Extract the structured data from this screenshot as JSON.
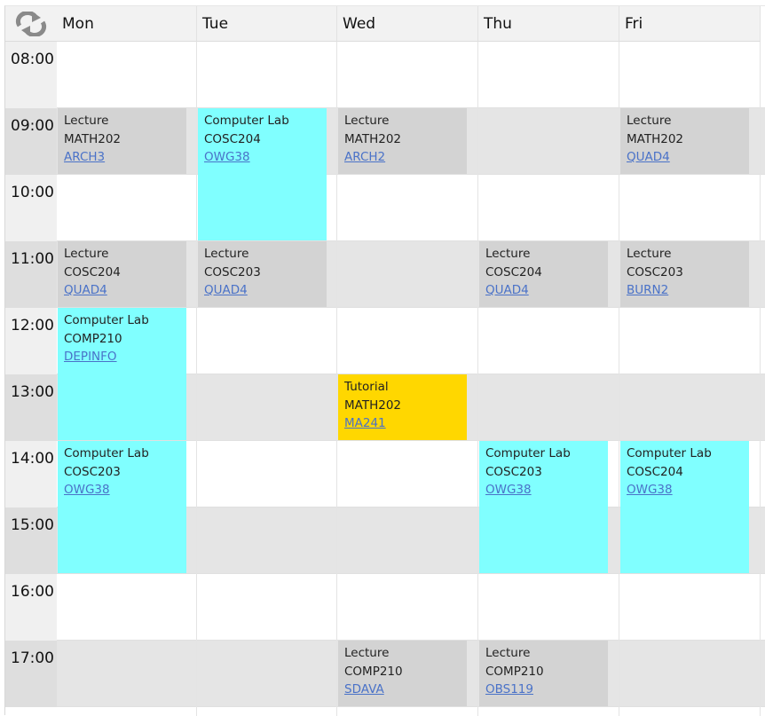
{
  "days": [
    "Mon",
    "Tue",
    "Wed",
    "Thu",
    "Fri"
  ],
  "times": [
    "08:00",
    "09:00",
    "10:00",
    "11:00",
    "12:00",
    "13:00",
    "14:00",
    "15:00",
    "16:00",
    "17:00"
  ],
  "colors": {
    "lecture": "#d3d3d3",
    "lab": "#80ffff",
    "tutorial": "#ffd700",
    "link": "#4a72c8"
  },
  "events": [
    {
      "day": 0,
      "start": 9,
      "hours": 1,
      "kind": "lecture",
      "type": "Lecture",
      "course": "MATH202",
      "room": "ARCH3"
    },
    {
      "day": 0,
      "start": 11,
      "hours": 1,
      "kind": "lecture",
      "type": "Lecture",
      "course": "COSC204",
      "room": "QUAD4"
    },
    {
      "day": 0,
      "start": 12,
      "hours": 2,
      "kind": "lab",
      "type": "Computer Lab",
      "course": "COMP210",
      "room": "DEPINFO"
    },
    {
      "day": 0,
      "start": 14,
      "hours": 2,
      "kind": "lab",
      "type": "Computer Lab",
      "course": "COSC203",
      "room": "OWG38"
    },
    {
      "day": 1,
      "start": 9,
      "hours": 2,
      "kind": "lab",
      "type": "Computer Lab",
      "course": "COSC204",
      "room": "OWG38"
    },
    {
      "day": 1,
      "start": 11,
      "hours": 1,
      "kind": "lecture",
      "type": "Lecture",
      "course": "COSC203",
      "room": "QUAD4"
    },
    {
      "day": 2,
      "start": 9,
      "hours": 1,
      "kind": "lecture",
      "type": "Lecture",
      "course": "MATH202",
      "room": "ARCH2"
    },
    {
      "day": 2,
      "start": 13,
      "hours": 1,
      "kind": "tutorial",
      "type": "Tutorial",
      "course": "MATH202",
      "room": "MA241"
    },
    {
      "day": 2,
      "start": 17,
      "hours": 1,
      "kind": "lecture",
      "type": "Lecture",
      "course": "COMP210",
      "room": "SDAVA"
    },
    {
      "day": 3,
      "start": 11,
      "hours": 1,
      "kind": "lecture",
      "type": "Lecture",
      "course": "COSC204",
      "room": "QUAD4"
    },
    {
      "day": 3,
      "start": 14,
      "hours": 2,
      "kind": "lab",
      "type": "Computer Lab",
      "course": "COSC203",
      "room": "OWG38"
    },
    {
      "day": 3,
      "start": 17,
      "hours": 1,
      "kind": "lecture",
      "type": "Lecture",
      "course": "COMP210",
      "room": "OBS119"
    },
    {
      "day": 4,
      "start": 9,
      "hours": 1,
      "kind": "lecture",
      "type": "Lecture",
      "course": "MATH202",
      "room": "QUAD4"
    },
    {
      "day": 4,
      "start": 11,
      "hours": 1,
      "kind": "lecture",
      "type": "Lecture",
      "course": "COSC203",
      "room": "BURN2"
    },
    {
      "day": 4,
      "start": 14,
      "hours": 2,
      "kind": "lab",
      "type": "Computer Lab",
      "course": "COSC204",
      "room": "OWG38"
    }
  ]
}
